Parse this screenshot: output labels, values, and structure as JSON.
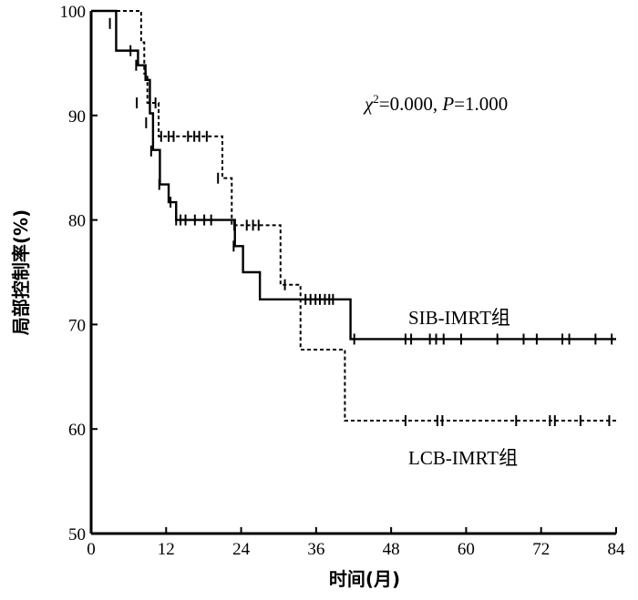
{
  "chart_data": {
    "type": "line",
    "subtype": "kaplan-meier",
    "title": "",
    "xlabel": "时间(月)",
    "ylabel": "局部控制率(%)",
    "xlim": [
      0,
      84
    ],
    "ylim": [
      50,
      100
    ],
    "xticks": [
      0,
      12,
      24,
      36,
      48,
      60,
      72,
      84
    ],
    "yticks": [
      50,
      60,
      70,
      80,
      90,
      100
    ],
    "grid": false,
    "legend": "none (series labelled directly on the chart)",
    "annotation": {
      "chi": "χ",
      "sup": "2",
      "rest": "=0.000, ",
      "p": "P",
      "p_val": "=1.000"
    },
    "series": [
      {
        "name": "SIB-IMRT组",
        "style": "solid",
        "steps": [
          [
            0,
            100
          ],
          [
            4,
            96.2
          ],
          [
            7.5,
            94.8
          ],
          [
            8.7,
            93.4
          ],
          [
            9.4,
            90.2
          ],
          [
            9.9,
            86.7
          ],
          [
            11,
            83.4
          ],
          [
            12.4,
            81.7
          ],
          [
            13.6,
            80
          ],
          [
            23,
            77.5
          ],
          [
            24.3,
            75
          ],
          [
            27,
            72.4
          ],
          [
            41.5,
            68.6
          ],
          [
            84,
            68.6
          ]
        ],
        "censored": [
          [
            3,
            98.8
          ],
          [
            6.3,
            96.2
          ],
          [
            7.2,
            94.8
          ],
          [
            8.8,
            89.3
          ],
          [
            9.6,
            86.6
          ],
          [
            10.9,
            83.4
          ],
          [
            12.7,
            81.7
          ],
          [
            13.6,
            80
          ],
          [
            14.3,
            80
          ],
          [
            15.1,
            80
          ],
          [
            16.6,
            80
          ],
          [
            18.1,
            80
          ],
          [
            19.2,
            80
          ],
          [
            22.8,
            77.5
          ],
          [
            38.1,
            72.4
          ],
          [
            38.7,
            72.4
          ],
          [
            42.1,
            68.6
          ],
          [
            50.3,
            68.6
          ],
          [
            51.2,
            68.6
          ],
          [
            54.2,
            68.6
          ],
          [
            55.2,
            68.6
          ],
          [
            56.4,
            68.6
          ],
          [
            59.2,
            68.6
          ],
          [
            65,
            68.6
          ],
          [
            69.2,
            68.6
          ],
          [
            71.3,
            68.6
          ],
          [
            75.4,
            68.6
          ],
          [
            76.5,
            68.6
          ],
          [
            80.7,
            68.6
          ],
          [
            83.3,
            68.6
          ]
        ]
      },
      {
        "name": "LCB-IMRT组",
        "style": "dashed",
        "steps": [
          [
            0,
            100
          ],
          [
            8,
            97
          ],
          [
            8.5,
            94
          ],
          [
            9,
            91.2
          ],
          [
            10.8,
            88
          ],
          [
            21,
            84
          ],
          [
            22.5,
            79.5
          ],
          [
            30.3,
            73.8
          ],
          [
            33.5,
            67.6
          ],
          [
            40.6,
            60.8
          ],
          [
            84,
            60.8
          ]
        ],
        "censored": [
          [
            7.3,
            91.2
          ],
          [
            10.3,
            91.2
          ],
          [
            11.2,
            88
          ],
          [
            12.4,
            88
          ],
          [
            13.2,
            88
          ],
          [
            15.5,
            88
          ],
          [
            16.5,
            88
          ],
          [
            17.3,
            88
          ],
          [
            18.5,
            88
          ],
          [
            20.3,
            84
          ],
          [
            22.9,
            79.5
          ],
          [
            24.9,
            79.5
          ],
          [
            25.9,
            79.5
          ],
          [
            26.8,
            79.5
          ],
          [
            31,
            73.8
          ],
          [
            34.3,
            72.4
          ],
          [
            35.1,
            72.4
          ],
          [
            35.9,
            72.4
          ],
          [
            36.6,
            72.4
          ],
          [
            37.4,
            72.4
          ],
          [
            50.3,
            60.8
          ],
          [
            55.4,
            60.8
          ],
          [
            56.2,
            60.8
          ],
          [
            68,
            60.8
          ],
          [
            73.4,
            60.8
          ],
          [
            74.2,
            60.8
          ],
          [
            78.3,
            60.8
          ],
          [
            82.9,
            60.8
          ]
        ]
      }
    ]
  }
}
